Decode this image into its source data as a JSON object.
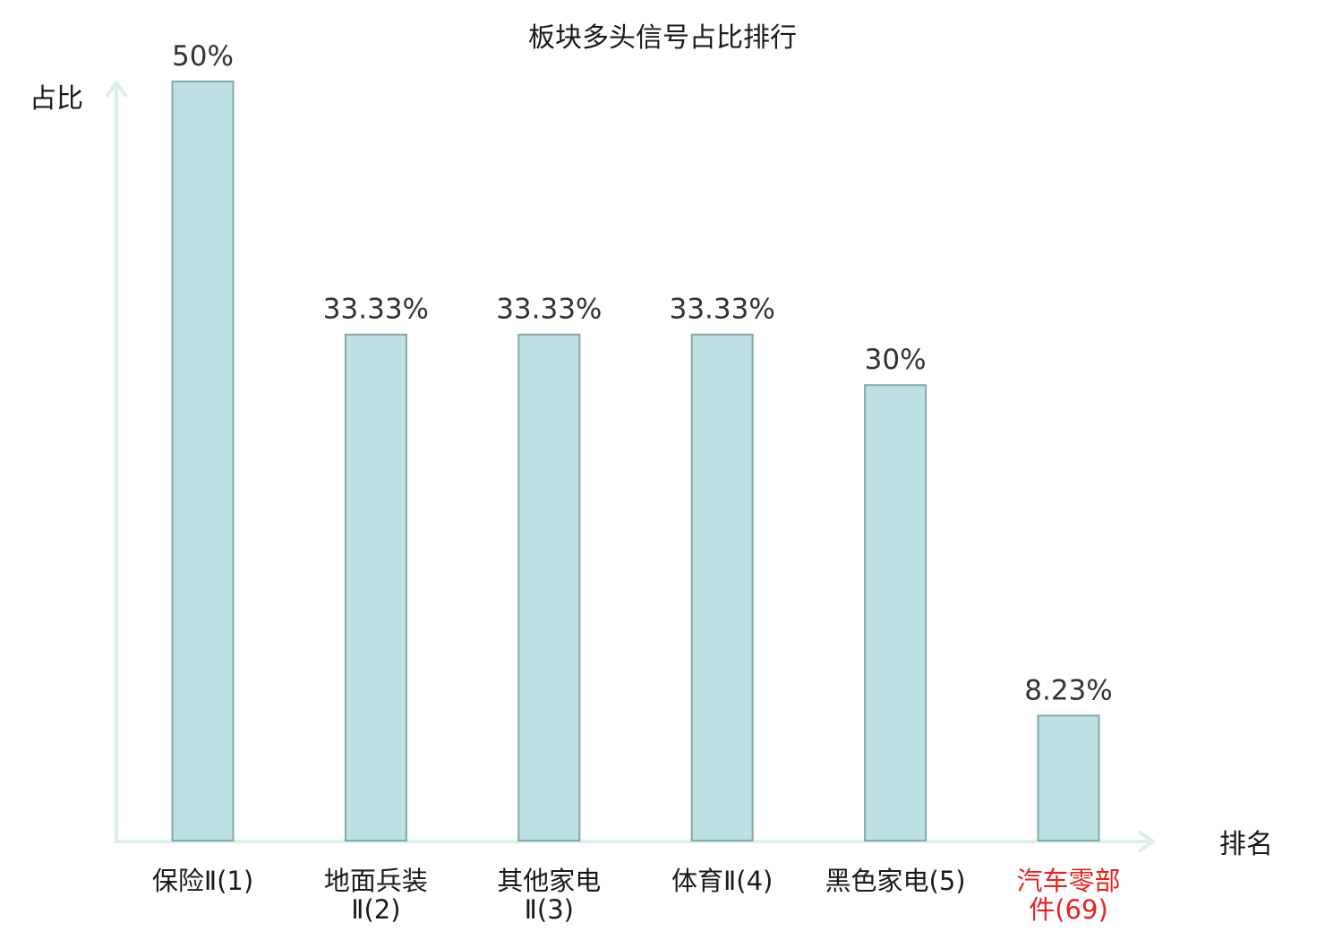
{
  "chart_data": {
    "type": "bar",
    "title": "板块多头信号占比排行",
    "ylabel": "占比",
    "xlabel": "排名",
    "ylim": [
      0,
      50
    ],
    "grid": false,
    "legend": "none",
    "categories": [
      "保险Ⅱ(1)",
      "地面兵装Ⅱ(2)",
      "其他家电Ⅱ(3)",
      "体育Ⅱ(4)",
      "黑色家电(5)",
      "汽车零部件(69)"
    ],
    "category_lines": [
      [
        "保险Ⅱ(1)"
      ],
      [
        "地面兵装",
        "Ⅱ(2)"
      ],
      [
        "其他家电",
        "Ⅱ(3)"
      ],
      [
        "体育Ⅱ(4)"
      ],
      [
        "黑色家电(5)"
      ],
      [
        "汽车零部",
        "件(69)"
      ]
    ],
    "values": [
      50,
      33.33,
      33.33,
      33.33,
      30,
      8.23
    ],
    "data_labels": [
      "50%",
      "33.33%",
      "33.33%",
      "33.33%",
      "30%",
      "8.23%"
    ],
    "highlight_index": 5
  },
  "colors": {
    "bar_fill": "#bde0e3",
    "bar_stroke": "#86a8ab",
    "axis": "#dcefec",
    "label_text": "#1a1a1a",
    "highlight_text": "#e8231f"
  }
}
